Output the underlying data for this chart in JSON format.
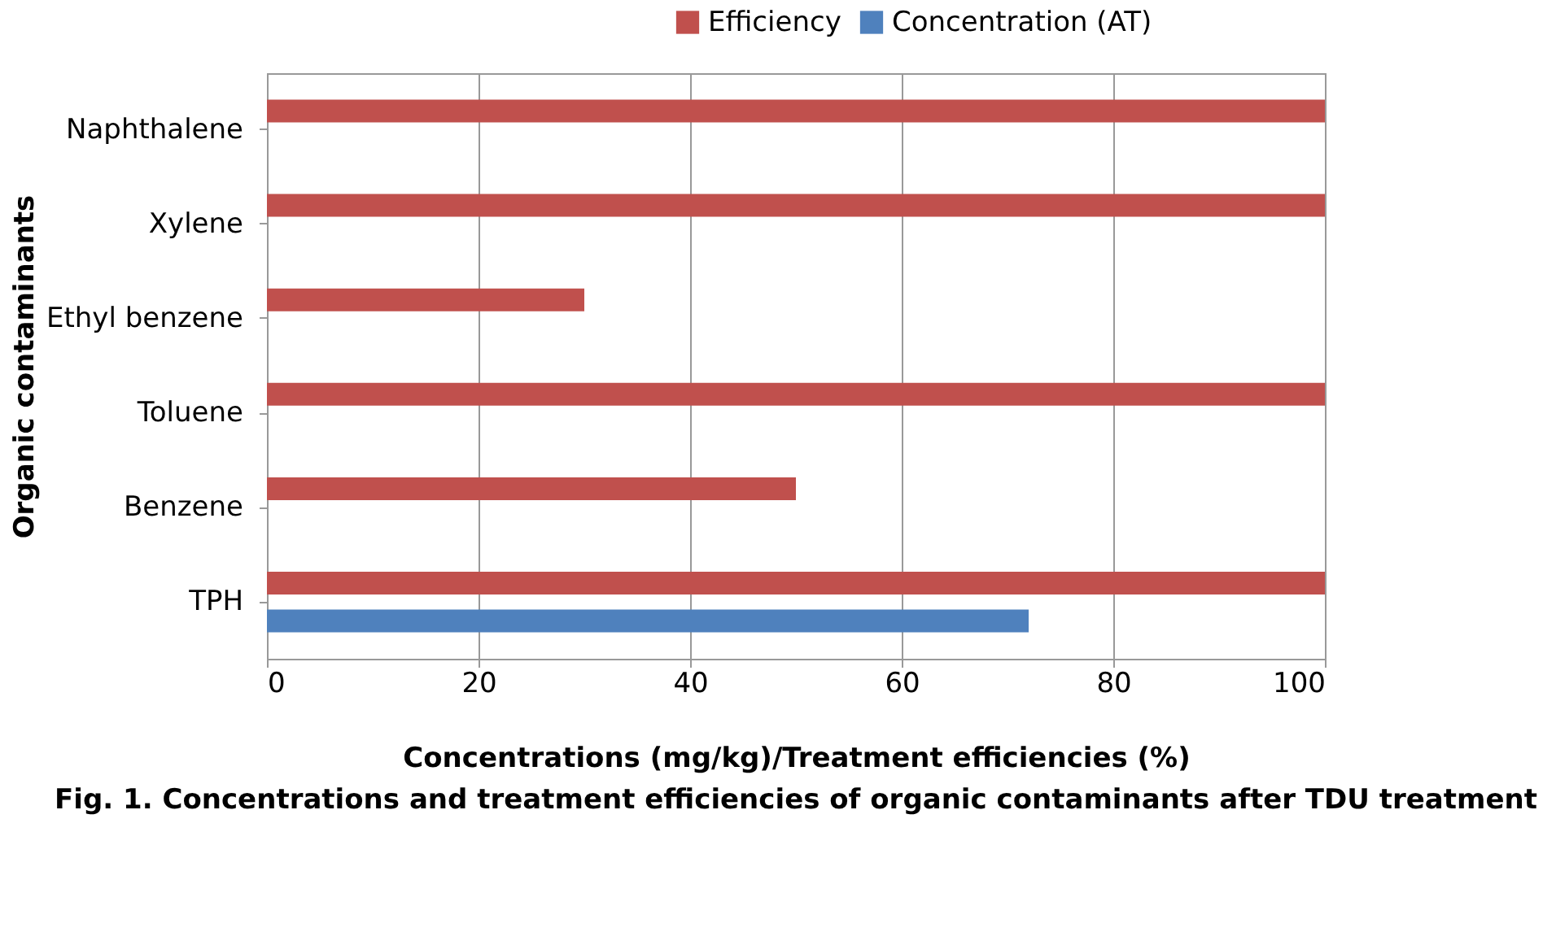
{
  "chart_data": {
    "type": "bar",
    "orientation": "horizontal",
    "categories": [
      "Naphthalene",
      "Xylene",
      "Ethyl benzene",
      "Toluene",
      "Benzene",
      "TPH"
    ],
    "series": [
      {
        "name": "Efficiency",
        "color": "#c0504d",
        "values": [
          100,
          100,
          30,
          100,
          50,
          100
        ]
      },
      {
        "name": "Concentration (AT)",
        "color": "#4f81bd",
        "values": [
          0,
          0,
          0,
          0,
          0,
          72
        ]
      }
    ],
    "xlim": [
      0,
      100
    ],
    "xticks": [
      0,
      20,
      40,
      60,
      80,
      100
    ],
    "grid": "x",
    "legend": "top right",
    "xlabel": "Concentrations (mg/kg)/Treatment efficiencies (%)",
    "ylabel": "Organic contaminants",
    "annotations": [
      "Fig. 1. Concentrations and treatment efficiencies of organic contaminants after TDU treatment"
    ]
  }
}
